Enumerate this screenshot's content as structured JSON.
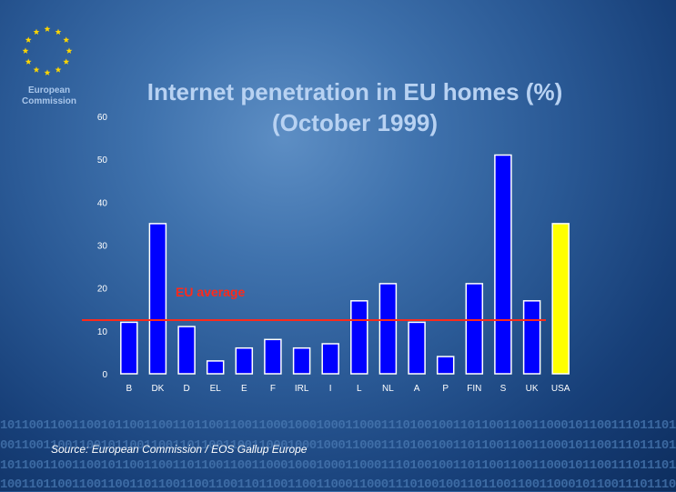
{
  "logo": {
    "text_line1": "European",
    "text_line2": "Commission"
  },
  "chart_data": {
    "type": "bar",
    "title": "Internet penetration in EU homes (%)",
    "subtitle": "(October 1999)",
    "categories": [
      "B",
      "DK",
      "D",
      "EL",
      "E",
      "F",
      "IRL",
      "I",
      "L",
      "NL",
      "A",
      "P",
      "FIN",
      "S",
      "UK",
      "USA"
    ],
    "values": [
      12,
      35,
      11,
      3,
      6,
      8,
      6,
      7,
      17,
      21,
      12,
      4,
      21,
      51,
      17,
      35
    ],
    "ylim": [
      0,
      60
    ],
    "yticks": [
      0,
      10,
      20,
      30,
      40,
      50,
      60
    ],
    "reference_line": {
      "label": "EU average",
      "value": 12.5
    },
    "colors": {
      "bar": "#0000ff",
      "bar_highlight": "#ffff00",
      "bar_outline": "#ffffff",
      "reference_line": "#ff2a1a"
    },
    "highlight_category": "USA"
  },
  "footer": {
    "source": "Source: European Commission / EOS Gallup Europe"
  },
  "background_binary": [
    "1011001100110010110011001101100110011000100010001100011101001001101100110011000101100111011101",
    "0011001100110010110011001101100110011000100010001100011101001001101100110011000101100111011101",
    "1011001100110010110011001101100110011000100010001100011101001001101100110011000101100111011101",
    "1001101100110011001101100110011001101100110011000110001110100100110110011001100010110011101110"
  ]
}
